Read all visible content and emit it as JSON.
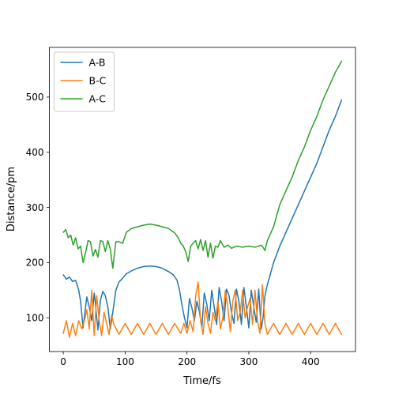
{
  "chart_data": {
    "type": "line",
    "title": "",
    "xlabel": "Time/fs",
    "ylabel": "Distance/pm",
    "xlim": [
      -22.5,
      472.5
    ],
    "ylim": [
      39,
      590
    ],
    "xticks": [
      0,
      100,
      200,
      300,
      400
    ],
    "yticks": [
      100,
      200,
      300,
      400,
      500
    ],
    "grid": false,
    "legend_position": "upper-left",
    "series": [
      {
        "name": "A-B",
        "color": "#1f77b4",
        "x": [
          0,
          5,
          10,
          15,
          20,
          25,
          28,
          32,
          38,
          42,
          46,
          50,
          52,
          56,
          60,
          64,
          68,
          72,
          76,
          80,
          85,
          90,
          96,
          102,
          110,
          120,
          130,
          140,
          150,
          160,
          170,
          178,
          184,
          188,
          192,
          196,
          200,
          204,
          208,
          212,
          216,
          220,
          224,
          228,
          232,
          236,
          240,
          244,
          248,
          252,
          256,
          260,
          264,
          268,
          272,
          276,
          280,
          284,
          288,
          292,
          296,
          300,
          304,
          308,
          312,
          316,
          320,
          323,
          326,
          330,
          340,
          350,
          360,
          370,
          380,
          390,
          400,
          410,
          420,
          430,
          440,
          450
        ],
        "y": [
          178,
          170,
          174,
          166,
          168,
          150,
          130,
          82,
          138,
          120,
          95,
          145,
          125,
          78,
          132,
          148,
          140,
          120,
          80,
          110,
          150,
          165,
          172,
          180,
          185,
          190,
          193,
          194,
          193,
          190,
          184,
          178,
          168,
          150,
          122,
          100,
          82,
          135,
          118,
          95,
          130,
          112,
          82,
          145,
          125,
          95,
          150,
          120,
          88,
          155,
          130,
          95,
          152,
          140,
          110,
          90,
          152,
          130,
          88,
          155,
          120,
          82,
          150,
          120,
          92,
          152,
          80,
          100,
          140,
          160,
          200,
          230,
          255,
          280,
          305,
          330,
          355,
          380,
          410,
          440,
          465,
          495
        ]
      },
      {
        "name": "B-C",
        "color": "#ff7f0e",
        "x": [
          0,
          5,
          10,
          15,
          20,
          25,
          30,
          35,
          38,
          42,
          46,
          50,
          54,
          58,
          62,
          66,
          70,
          74,
          78,
          82,
          90,
          100,
          110,
          120,
          130,
          140,
          150,
          160,
          170,
          180,
          190,
          195,
          200,
          205,
          210,
          214,
          218,
          222,
          226,
          230,
          234,
          238,
          242,
          246,
          250,
          254,
          258,
          262,
          266,
          270,
          274,
          278,
          282,
          286,
          290,
          294,
          298,
          302,
          306,
          310,
          314,
          318,
          322,
          326,
          330,
          340,
          350,
          360,
          370,
          380,
          390,
          400,
          410,
          420,
          430,
          440,
          450
        ],
        "y": [
          72,
          95,
          65,
          90,
          68,
          95,
          80,
          98,
          115,
          80,
          150,
          68,
          140,
          95,
          68,
          110,
          90,
          70,
          105,
          88,
          70,
          90,
          70,
          90,
          70,
          90,
          70,
          90,
          70,
          90,
          72,
          90,
          72,
          95,
          75,
          140,
          165,
          95,
          70,
          120,
          90,
          72,
          110,
          95,
          130,
          80,
          100,
          150,
          120,
          75,
          130,
          150,
          95,
          110,
          150,
          100,
          120,
          135,
          88,
          150,
          95,
          72,
          160,
          90,
          70,
          90,
          70,
          90,
          70,
          90,
          70,
          90,
          70,
          90,
          70,
          90,
          70
        ]
      },
      {
        "name": "A-C",
        "color": "#2ca02c",
        "x": [
          0,
          4,
          8,
          12,
          16,
          20,
          24,
          28,
          32,
          36,
          40,
          44,
          48,
          52,
          56,
          60,
          64,
          68,
          72,
          76,
          80,
          85,
          90,
          96,
          102,
          110,
          120,
          130,
          140,
          150,
          160,
          170,
          180,
          186,
          190,
          194,
          198,
          202,
          206,
          210,
          214,
          218,
          222,
          226,
          230,
          234,
          238,
          242,
          246,
          250,
          254,
          260,
          266,
          272,
          280,
          290,
          300,
          310,
          316,
          320,
          323,
          326,
          330,
          340,
          350,
          360,
          370,
          380,
          390,
          400,
          410,
          420,
          430,
          440,
          450
        ],
        "y": [
          255,
          260,
          245,
          250,
          232,
          245,
          225,
          230,
          200,
          218,
          240,
          238,
          212,
          224,
          210,
          240,
          238,
          220,
          240,
          225,
          190,
          238,
          238,
          235,
          255,
          262,
          265,
          268,
          270,
          268,
          265,
          262,
          254,
          245,
          235,
          230,
          220,
          202,
          230,
          235,
          240,
          225,
          242,
          222,
          240,
          210,
          235,
          208,
          230,
          228,
          240,
          228,
          232,
          226,
          230,
          228,
          230,
          228,
          230,
          232,
          228,
          222,
          240,
          265,
          305,
          330,
          355,
          385,
          410,
          440,
          465,
          495,
          520,
          545,
          565
        ]
      }
    ]
  }
}
